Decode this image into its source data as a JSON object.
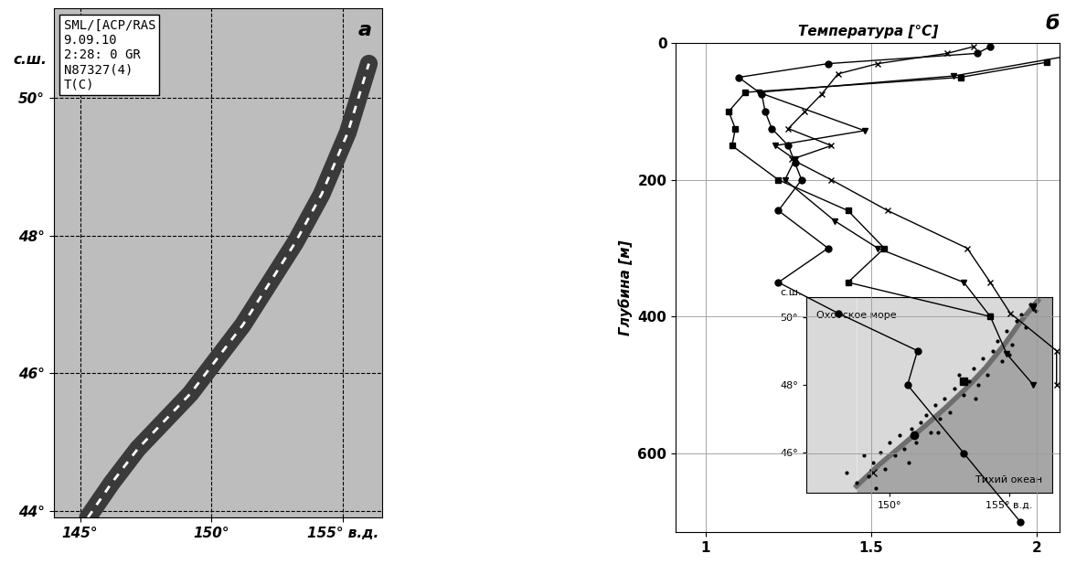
{
  "chart_data": [
    {
      "type": "map",
      "panel_label": "а",
      "info_box": [
        "SML/[ACP/RAS",
        "9.09.10",
        "2:28: 0 GR",
        "N87327(4)",
        "T(C)"
      ],
      "ylabel": "с.ш.",
      "xlim": [
        144.0,
        156.5
      ],
      "ylim": [
        43.9,
        51.3
      ],
      "xticks": [
        {
          "value": 145,
          "label": "145°"
        },
        {
          "value": 150,
          "label": "150°"
        },
        {
          "value": 155,
          "label": "155° в.д."
        }
      ],
      "yticks": [
        {
          "value": 44,
          "label": "44°"
        },
        {
          "value": 46,
          "label": "46°"
        },
        {
          "value": 48,
          "label": "48°"
        },
        {
          "value": 50,
          "label": "50°"
        }
      ],
      "grid": true,
      "ridge": {
        "lon": [
          145.3,
          146.2,
          147.2,
          148.2,
          149.2,
          150.2,
          151.2,
          152.2,
          153.2,
          154.2,
          155.2,
          156.0
        ],
        "lat": [
          43.9,
          44.4,
          44.9,
          45.3,
          45.7,
          46.2,
          46.7,
          47.3,
          47.9,
          48.6,
          49.5,
          50.5
        ]
      }
    },
    {
      "type": "line",
      "panel_label": "б",
      "xlabel": "Температура [°C]",
      "ylabel": "Глубина [м]",
      "xlim": [
        0.91,
        2.07
      ],
      "ylim": [
        715,
        0
      ],
      "xticks": [
        1,
        1.5,
        2
      ],
      "yticks": [
        0,
        200,
        400,
        600
      ],
      "grid": true,
      "series": [
        {
          "marker": "circle",
          "color": "#000000",
          "depth": [
            5,
            15,
            30,
            50,
            75,
            100,
            125,
            150,
            175,
            200,
            245,
            300,
            350,
            395,
            450,
            500,
            600,
            700
          ],
          "values": [
            1.86,
            1.82,
            1.37,
            1.1,
            1.17,
            1.18,
            1.2,
            1.25,
            1.27,
            1.29,
            1.22,
            1.37,
            1.22,
            1.4,
            1.64,
            1.61,
            1.78,
            1.95
          ]
        },
        {
          "marker": "cross",
          "color": "#000000",
          "depth": [
            5,
            15,
            30,
            45,
            75,
            100,
            125,
            150,
            170,
            200,
            245,
            300,
            350,
            395,
            450,
            500
          ],
          "values": [
            1.81,
            1.73,
            1.52,
            1.4,
            1.35,
            1.3,
            1.25,
            1.38,
            1.26,
            1.38,
            1.55,
            1.79,
            1.86,
            1.92,
            2.06,
            2.06
          ]
        },
        {
          "marker": "triangle_down",
          "color": "#000000",
          "depth": [
            20,
            48,
            72,
            128,
            150,
            170,
            200,
            260,
            300,
            350,
            400,
            455,
            500
          ],
          "values": [
            2.08,
            1.75,
            1.16,
            1.48,
            1.21,
            1.27,
            1.24,
            1.39,
            1.52,
            1.78,
            1.86,
            1.91,
            1.99
          ]
        },
        {
          "marker": "square",
          "color": "#000000",
          "depth": [
            28,
            50,
            72,
            100,
            125,
            150,
            200,
            245,
            300,
            350,
            400
          ],
          "values": [
            2.03,
            1.77,
            1.12,
            1.07,
            1.09,
            1.08,
            1.22,
            1.43,
            1.54,
            1.43,
            1.86
          ]
        }
      ]
    },
    {
      "type": "map",
      "texts": [
        "Охотское море",
        "Тихий океан"
      ],
      "ylabel": "с.ш.",
      "xlim": [
        146.5,
        156.8
      ],
      "ylim": [
        44.8,
        50.6
      ],
      "xticks": [
        {
          "value": 150,
          "label": "150°"
        },
        {
          "value": 155,
          "label": "155° в.д."
        }
      ],
      "yticks": [
        {
          "value": 46,
          "label": "46°"
        },
        {
          "value": 48,
          "label": "48°"
        },
        {
          "value": 50,
          "label": "50°"
        }
      ],
      "ridge": {
        "lon": [
          148.6,
          149.5,
          150.5,
          151.5,
          152.3,
          153.2,
          154.0,
          154.8,
          155.5,
          156.2
        ],
        "lat": [
          45.0,
          45.6,
          46.2,
          46.8,
          47.3,
          47.9,
          48.5,
          49.2,
          49.9,
          50.5
        ]
      },
      "stations": {
        "lon": [
          148.2,
          148.6,
          148.9,
          149.1,
          149.3,
          149.6,
          149.8,
          150.0,
          150.2,
          150.4,
          150.6,
          150.9,
          151.1,
          151.3,
          151.5,
          151.7,
          151.9,
          152.1,
          152.3,
          152.5,
          152.7,
          152.9,
          153.1,
          153.3,
          153.5,
          153.7,
          153.9,
          154.1,
          154.3,
          154.5,
          154.7,
          154.9,
          155.1,
          155.3,
          155.5,
          155.7,
          155.9,
          156.1,
          149.4,
          150.8,
          152.0,
          153.6,
          155.0
        ],
        "lat": [
          45.4,
          45.1,
          45.9,
          45.3,
          45.7,
          46.0,
          45.5,
          46.3,
          45.9,
          46.5,
          46.1,
          46.7,
          46.3,
          46.9,
          47.1,
          46.6,
          47.4,
          47.0,
          47.6,
          47.2,
          47.9,
          48.3,
          47.7,
          48.1,
          48.5,
          48.0,
          48.8,
          48.3,
          49.0,
          49.3,
          48.7,
          49.6,
          49.2,
          49.9,
          50.1,
          49.7,
          50.4,
          50.2,
          44.95,
          45.7,
          46.6,
          47.6,
          48.9
        ]
      },
      "profiles": [
        {
          "marker": "cross",
          "lon": 149.3,
          "lat": 45.4
        },
        {
          "marker": "circle",
          "lon": 151.0,
          "lat": 46.5
        },
        {
          "marker": "square",
          "lon": 153.1,
          "lat": 48.1
        },
        {
          "marker": "triangle_down",
          "lon": 156.0,
          "lat": 50.3
        }
      ]
    }
  ]
}
